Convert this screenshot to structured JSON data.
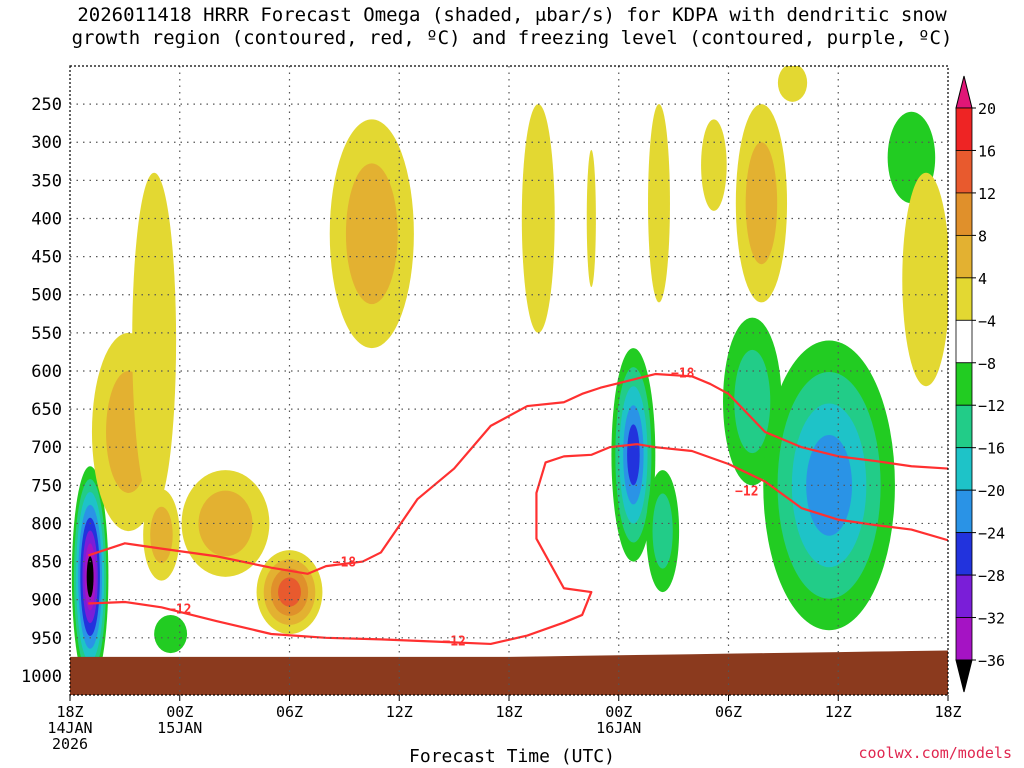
{
  "title": {
    "line1": "2026011418 HRRR Forecast Omega (shaded, μbar/s) for KDPA with dendritic snow",
    "line2": "growth region (contoured, red, ºC) and freezing level (contoured, purple, ºC)"
  },
  "watermark": "coolwx.com/models",
  "colors": {
    "ground": "#8b3a1e",
    "contour": "#ff3030",
    "grid": "#555555",
    "w4": "#e3d832",
    "w8": "#e3b131",
    "w12": "#e0902b",
    "w16": "#e85a2e",
    "w20": "#ee2424",
    "w24": "#e01677",
    "g4": "#22cc22",
    "g8": "#22cc88",
    "g12": "#1ec3c8",
    "g16": "#2a93e6",
    "g20": "#2233dd",
    "g24": "#7a1ed8",
    "g28": "#a513c4",
    "g32": "#a6a6a6",
    "g36": "#000000"
  },
  "chart_data": {
    "type": "heatmap",
    "xlabel": "Forecast Time (UTC)",
    "x_ticks": [
      {
        "hour": 0,
        "label1": "18Z",
        "label2": "14JAN",
        "label3": "2026"
      },
      {
        "hour": 6,
        "label1": "00Z",
        "label2": "15JAN",
        "label3": ""
      },
      {
        "hour": 12,
        "label1": "06Z",
        "label2": "",
        "label3": ""
      },
      {
        "hour": 18,
        "label1": "12Z",
        "label2": "",
        "label3": ""
      },
      {
        "hour": 24,
        "label1": "18Z",
        "label2": "",
        "label3": ""
      },
      {
        "hour": 30,
        "label1": "00Z",
        "label2": "16JAN",
        "label3": ""
      },
      {
        "hour": 36,
        "label1": "06Z",
        "label2": "",
        "label3": ""
      },
      {
        "hour": 42,
        "label1": "12Z",
        "label2": "",
        "label3": ""
      },
      {
        "hour": 48,
        "label1": "18Z",
        "label2": "",
        "label3": ""
      }
    ],
    "xlim": [
      0,
      48
    ],
    "y_ticks": [
      250,
      300,
      350,
      400,
      450,
      500,
      550,
      600,
      650,
      700,
      750,
      800,
      850,
      900,
      950,
      1000
    ],
    "ylim": [
      1025,
      200
    ],
    "ylabel": "",
    "colorbar": {
      "levels": [
        "20",
        "16",
        "12",
        "8",
        "4",
        "−4",
        "−8",
        "−12",
        "−16",
        "−20",
        "−24",
        "−28",
        "−32",
        "−36"
      ],
      "units": "μbar/s"
    },
    "omega_features": [
      {
        "x": 1.1,
        "p": 870,
        "rx": 1.0,
        "rp": 145,
        "levels": [
          -4,
          -8,
          -12,
          -16,
          -20,
          -24,
          -28,
          -36
        ]
      },
      {
        "x": 3.2,
        "p": 680,
        "rx": 2.0,
        "rp": 130,
        "levels": [
          4,
          8
        ]
      },
      {
        "x": 4.6,
        "p": 560,
        "rx": 1.2,
        "rp": 220,
        "levels": [
          4
        ]
      },
      {
        "x": 5.0,
        "p": 815,
        "rx": 1.0,
        "rp": 60,
        "levels": [
          4,
          8
        ]
      },
      {
        "x": 5.5,
        "p": 945,
        "rx": 0.9,
        "rp": 25,
        "levels": [
          -4
        ]
      },
      {
        "x": 8.5,
        "p": 800,
        "rx": 2.4,
        "rp": 70,
        "levels": [
          4,
          8
        ]
      },
      {
        "x": 12.0,
        "p": 890,
        "rx": 1.8,
        "rp": 55,
        "levels": [
          4,
          8,
          12,
          16
        ]
      },
      {
        "x": 16.5,
        "p": 420,
        "rx": 2.3,
        "rp": 150,
        "levels": [
          4,
          8
        ]
      },
      {
        "x": 25.6,
        "p": 400,
        "rx": 0.9,
        "rp": 150,
        "levels": [
          4
        ]
      },
      {
        "x": 28.5,
        "p": 400,
        "rx": 0.25,
        "rp": 90,
        "levels": [
          4
        ]
      },
      {
        "x": 30.8,
        "p": 710,
        "rx": 1.2,
        "rp": 140,
        "levels": [
          -4,
          -8,
          -12,
          -16,
          -20
        ]
      },
      {
        "x": 32.4,
        "p": 810,
        "rx": 0.9,
        "rp": 80,
        "levels": [
          -4,
          -8
        ]
      },
      {
        "x": 32.2,
        "p": 380,
        "rx": 0.6,
        "rp": 130,
        "levels": [
          4
        ]
      },
      {
        "x": 35.2,
        "p": 330,
        "rx": 0.7,
        "rp": 60,
        "levels": [
          4
        ]
      },
      {
        "x": 37.8,
        "p": 380,
        "rx": 1.4,
        "rp": 130,
        "levels": [
          4,
          8
        ]
      },
      {
        "x": 37.3,
        "p": 640,
        "rx": 1.6,
        "rp": 110,
        "levels": [
          -4,
          -8
        ]
      },
      {
        "x": 41.5,
        "p": 750,
        "rx": 3.6,
        "rp": 190,
        "levels": [
          -4,
          -8,
          -12,
          -16
        ]
      },
      {
        "x": 39.5,
        "p": 222,
        "rx": 0.8,
        "rp": 25,
        "levels": [
          4
        ]
      },
      {
        "x": 46.0,
        "p": 320,
        "rx": 1.3,
        "rp": 60,
        "levels": [
          -4
        ]
      },
      {
        "x": 46.8,
        "p": 480,
        "rx": 1.3,
        "rp": 140,
        "levels": [
          4
        ]
      }
    ],
    "contours": [
      {
        "label": "−18",
        "points": [
          [
            1,
            842
          ],
          [
            3,
            826
          ],
          [
            5,
            833
          ],
          [
            8,
            843
          ],
          [
            11,
            858
          ],
          [
            13,
            866
          ],
          [
            14,
            856
          ],
          [
            16,
            850
          ],
          [
            17,
            838
          ],
          [
            18,
            803
          ],
          [
            19,
            768
          ],
          [
            21,
            728
          ],
          [
            23,
            672
          ],
          [
            25,
            646
          ],
          [
            27,
            641
          ],
          [
            28,
            630
          ],
          [
            29,
            622
          ],
          [
            31,
            610
          ],
          [
            32,
            604
          ],
          [
            34,
            607
          ],
          [
            35,
            617
          ],
          [
            36,
            630
          ],
          [
            37,
            655
          ],
          [
            38,
            680
          ],
          [
            40,
            700
          ],
          [
            42,
            712
          ],
          [
            44,
            718
          ],
          [
            46,
            725
          ],
          [
            48,
            728
          ]
        ],
        "label_pos": [
          [
            15,
            851
          ],
          [
            33.5,
            603
          ]
        ]
      },
      {
        "label": "−12",
        "points": [
          [
            1,
            905
          ],
          [
            3,
            903
          ],
          [
            5,
            910
          ],
          [
            8,
            928
          ],
          [
            11,
            945
          ],
          [
            14,
            950
          ],
          [
            17,
            952
          ],
          [
            20,
            955
          ],
          [
            23,
            958
          ],
          [
            25,
            947
          ],
          [
            27,
            930
          ],
          [
            28,
            920
          ],
          [
            28.5,
            890
          ],
          [
            27,
            885
          ],
          [
            25.5,
            820
          ],
          [
            25.5,
            760
          ],
          [
            26,
            720
          ],
          [
            27,
            712
          ],
          [
            28.5,
            710
          ],
          [
            29.5,
            700
          ],
          [
            31,
            696
          ],
          [
            32,
            700
          ],
          [
            34,
            705
          ],
          [
            36,
            722
          ],
          [
            38,
            745
          ],
          [
            40,
            780
          ],
          [
            42,
            795
          ],
          [
            44,
            802
          ],
          [
            46,
            808
          ],
          [
            48,
            822
          ]
        ],
        "label_pos": [
          [
            6,
            913
          ],
          [
            21,
            955
          ],
          [
            37,
            758
          ]
        ]
      }
    ]
  }
}
